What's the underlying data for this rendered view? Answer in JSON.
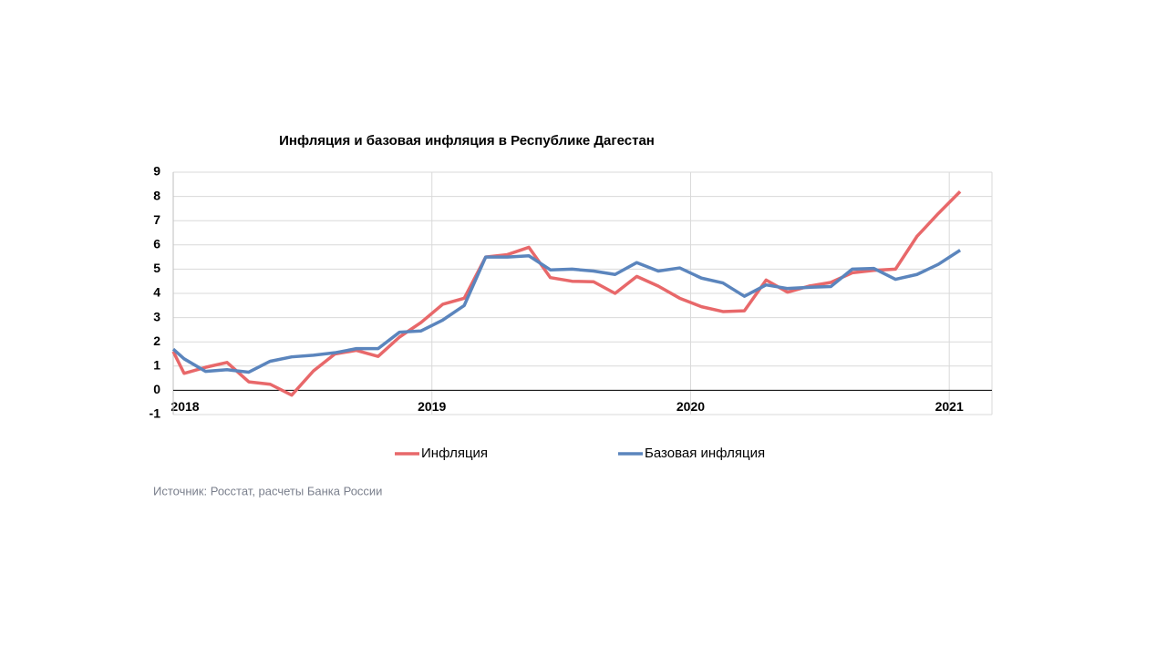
{
  "chart_data": {
    "type": "line",
    "title": "Инфляция и базовая инфляция в Республике Дагестан",
    "source": "Источник: Росстат, расчеты Банка России",
    "x": [
      2018,
      2018.042,
      2018.125,
      2018.208,
      2018.292,
      2018.375,
      2018.458,
      2018.542,
      2018.625,
      2018.708,
      2018.792,
      2018.875,
      2018.958,
      2019.042,
      2019.125,
      2019.208,
      2019.292,
      2019.375,
      2019.458,
      2019.542,
      2019.625,
      2019.708,
      2019.792,
      2019.875,
      2019.958,
      2020.042,
      2020.125,
      2020.208,
      2020.292,
      2020.375,
      2020.458,
      2020.542,
      2020.625,
      2020.708,
      2020.792,
      2020.875,
      2020.958,
      2021.042
    ],
    "series": [
      {
        "name": "Инфляция",
        "color": "#e8686a",
        "values": [
          1.6,
          0.7,
          0.95,
          1.15,
          0.35,
          0.25,
          -0.2,
          0.8,
          1.5,
          1.65,
          1.4,
          2.2,
          2.8,
          3.55,
          3.8,
          5.5,
          5.6,
          5.9,
          4.65,
          4.5,
          4.48,
          4.0,
          4.7,
          4.3,
          3.8,
          3.45,
          3.25,
          3.28,
          4.55,
          4.05,
          4.3,
          4.45,
          4.85,
          4.95,
          5.0,
          6.35,
          7.3,
          8.2
        ]
      },
      {
        "name": "Базовая инфляция",
        "color": "#5b85bd",
        "values": [
          1.7,
          1.3,
          0.78,
          0.85,
          0.75,
          1.2,
          1.38,
          1.45,
          1.55,
          1.72,
          1.72,
          2.4,
          2.45,
          2.9,
          3.5,
          5.5,
          5.5,
          5.55,
          4.97,
          5.0,
          4.92,
          4.78,
          5.27,
          4.92,
          5.05,
          4.63,
          4.43,
          3.88,
          4.35,
          4.2,
          4.25,
          4.28,
          5.0,
          5.03,
          4.58,
          4.78,
          5.2,
          5.78
        ]
      }
    ],
    "xlim": [
      2018,
      2021.165
    ],
    "xticks": [
      2018,
      2019,
      2020,
      2021
    ],
    "ylim": [
      -1,
      9
    ],
    "yticks": [
      -1,
      0,
      1,
      2,
      3,
      4,
      5,
      6,
      7,
      8,
      9
    ],
    "grid": true
  }
}
